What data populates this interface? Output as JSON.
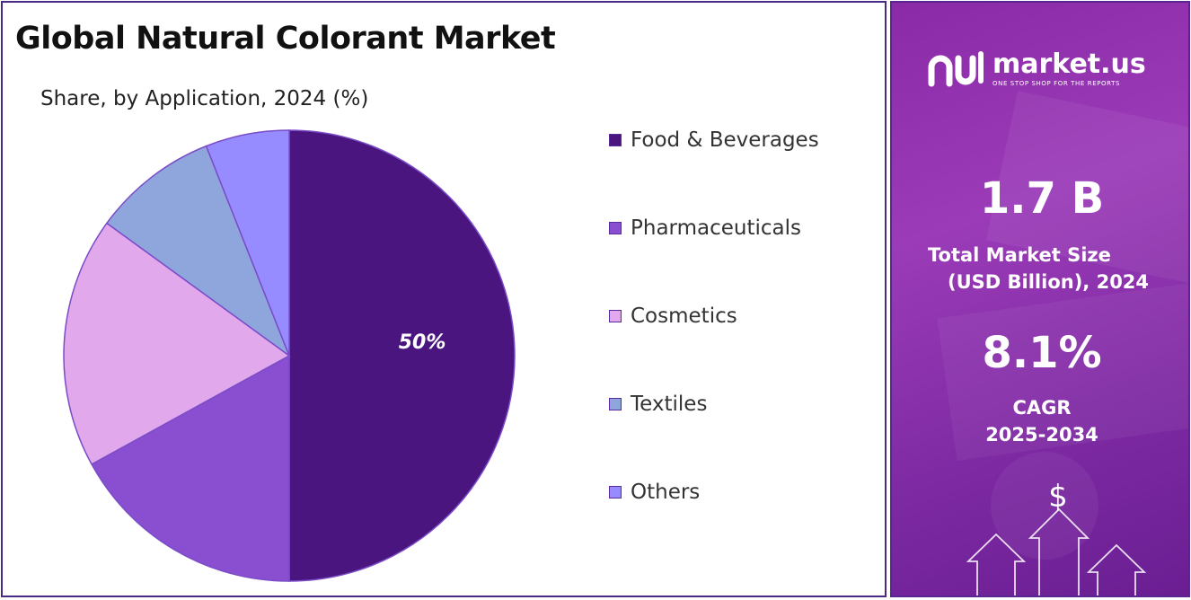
{
  "chart_data": {
    "type": "pie",
    "title": "Global Natural Colorant Market",
    "subtitle": "Share, by Application, 2024 (%)",
    "slices": [
      {
        "label": "Food & Beverages",
        "value": 50,
        "color": "#4b1580",
        "data_label": "50%"
      },
      {
        "label": "Pharmaceuticals",
        "value": 17,
        "color": "#8a4fd0"
      },
      {
        "label": "Cosmetics",
        "value": 18,
        "color": "#e2a8ec"
      },
      {
        "label": "Textiles",
        "value": 9,
        "color": "#8fa6dc"
      },
      {
        "label": "Others",
        "value": 6,
        "color": "#968cff"
      }
    ],
    "legend_position": "right"
  },
  "brand": {
    "name": "market.us",
    "tagline": "ONE STOP SHOP FOR THE REPORTS"
  },
  "stats": {
    "market_size_value": "1.7 B",
    "market_size_label_1": "Total Market Size",
    "market_size_label_2": "(USD Billion), 2024",
    "cagr_value": "8.1%",
    "cagr_label_1": "CAGR",
    "cagr_label_2": "2025-2034"
  },
  "icons": {
    "dollar": "$"
  }
}
